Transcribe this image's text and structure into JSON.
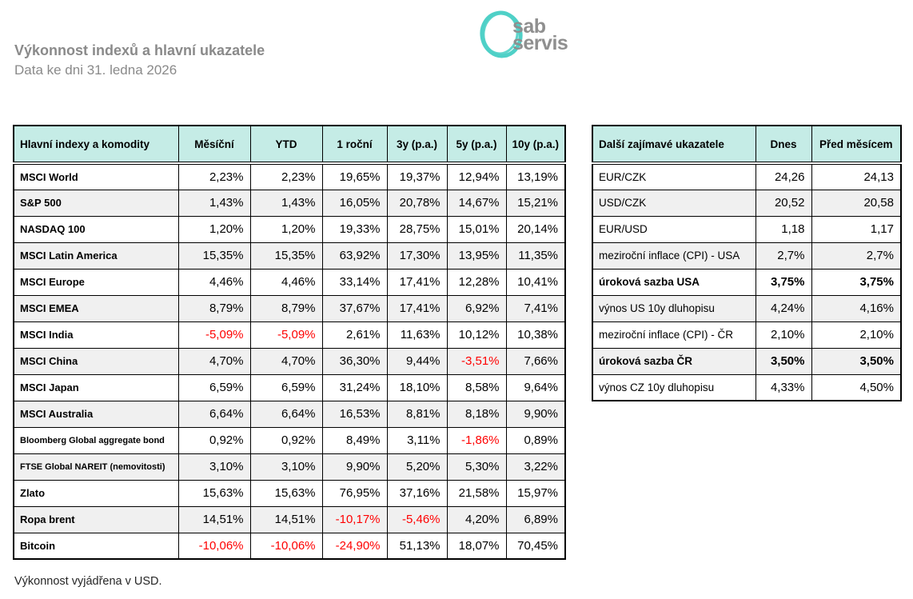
{
  "page": {
    "title": "Výkonnost indexů a hlavní ukazatele",
    "subtitle": "Data ke dni 31. ledna 2026",
    "footnote": "Výkonnost vyjádřena v USD."
  },
  "logo": {
    "line1": "sab",
    "line2": "servis",
    "circle_color": "#4fd0c7",
    "text_color": "#8f8f8f"
  },
  "colors": {
    "header_bg": "#c5ece6",
    "stripe_bg": "#f0f0f0",
    "negative": "#ff0000",
    "grid_border": "#000000",
    "title_gray": "#8a8a8a"
  },
  "main_table": {
    "headers": [
      "Hlavní indexy a komodity",
      "Měsíční",
      "YTD",
      "1 roční",
      "3y (p.a.)",
      "5y (p.a.)",
      "10y (p.a.)"
    ],
    "rows": [
      {
        "label": "MSCI World",
        "values": [
          "2,23%",
          "2,23%",
          "19,65%",
          "19,37%",
          "12,94%",
          "13,19%"
        ]
      },
      {
        "label": "S&P 500",
        "values": [
          "1,43%",
          "1,43%",
          "16,05%",
          "20,78%",
          "14,67%",
          "15,21%"
        ]
      },
      {
        "label": "NASDAQ 100",
        "values": [
          "1,20%",
          "1,20%",
          "19,33%",
          "28,75%",
          "15,01%",
          "20,14%"
        ]
      },
      {
        "label": "MSCI Latin America",
        "values": [
          "15,35%",
          "15,35%",
          "63,92%",
          "17,30%",
          "13,95%",
          "11,35%"
        ]
      },
      {
        "label": "MSCI Europe",
        "values": [
          "4,46%",
          "4,46%",
          "33,14%",
          "17,41%",
          "12,28%",
          "10,41%"
        ]
      },
      {
        "label": "MSCI EMEA",
        "values": [
          "8,79%",
          "8,79%",
          "37,67%",
          "17,41%",
          "6,92%",
          "7,41%"
        ]
      },
      {
        "label": "MSCI India",
        "values": [
          "-5,09%",
          "-5,09%",
          "2,61%",
          "11,63%",
          "10,12%",
          "10,38%"
        ]
      },
      {
        "label": "MSCI China",
        "values": [
          "4,70%",
          "4,70%",
          "36,30%",
          "9,44%",
          "-3,51%",
          "7,66%"
        ]
      },
      {
        "label": "MSCI Japan",
        "values": [
          "6,59%",
          "6,59%",
          "31,24%",
          "18,10%",
          "8,58%",
          "9,64%"
        ]
      },
      {
        "label": "MSCI Australia",
        "values": [
          "6,64%",
          "6,64%",
          "16,53%",
          "8,81%",
          "8,18%",
          "9,90%"
        ]
      },
      {
        "label": "Bloomberg Global aggregate bond",
        "small": true,
        "values": [
          "0,92%",
          "0,92%",
          "8,49%",
          "3,11%",
          "-1,86%",
          "0,89%"
        ]
      },
      {
        "label": "FTSE Global NAREIT (nemovitosti)",
        "small": true,
        "values": [
          "3,10%",
          "3,10%",
          "9,90%",
          "5,20%",
          "5,30%",
          "3,22%"
        ]
      },
      {
        "label": "Zlato",
        "values": [
          "15,63%",
          "15,63%",
          "76,95%",
          "37,16%",
          "21,58%",
          "15,97%"
        ]
      },
      {
        "label": "Ropa brent",
        "values": [
          "14,51%",
          "14,51%",
          "-10,17%",
          "-5,46%",
          "4,20%",
          "6,89%"
        ]
      },
      {
        "label": "Bitcoin",
        "values": [
          "-10,06%",
          "-10,06%",
          "-24,90%",
          "51,13%",
          "18,07%",
          "70,45%"
        ]
      }
    ]
  },
  "indicators_table": {
    "headers": [
      "Další zajímavé ukazatele",
      "Dnes",
      "Před měsícem"
    ],
    "rows": [
      {
        "label": "EUR/CZK",
        "values": [
          "24,26",
          "24,13"
        ]
      },
      {
        "label": "USD/CZK",
        "values": [
          "20,52",
          "20,58"
        ]
      },
      {
        "label": "EUR/USD",
        "values": [
          "1,18",
          "1,17"
        ]
      },
      {
        "label": "meziroční inflace (CPI) - USA",
        "values": [
          "2,7%",
          "2,7%"
        ]
      },
      {
        "label": "úroková sazba USA",
        "bold": true,
        "values": [
          "3,75%",
          "3,75%"
        ]
      },
      {
        "label": "výnos US 10y dluhopisu",
        "values": [
          "4,24%",
          "4,16%"
        ]
      },
      {
        "label": "meziroční inflace (CPI) - ČR",
        "values": [
          "2,10%",
          "2,10%"
        ]
      },
      {
        "label": "úroková sazba ČR",
        "bold": true,
        "values": [
          "3,50%",
          "3,50%"
        ]
      },
      {
        "label": "výnos CZ 10y dluhopisu",
        "values": [
          "4,33%",
          "4,50%"
        ]
      }
    ]
  }
}
